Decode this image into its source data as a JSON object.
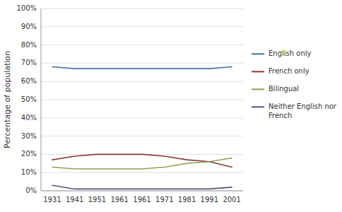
{
  "chart_data": {
    "type": "line",
    "y_label": "Percentage of population",
    "categories": [
      "1931",
      "1941",
      "1951",
      "1961",
      "1961",
      "1971",
      "1981",
      "1991",
      "2001"
    ],
    "series": [
      {
        "name": "English only",
        "color": "#4472A4",
        "values": [
          68,
          67,
          67,
          67,
          67,
          67,
          67,
          67,
          68
        ]
      },
      {
        "name": "French only",
        "color": "#8B3A3A",
        "values": [
          17,
          19,
          20,
          20,
          20,
          19,
          17,
          16,
          13
        ]
      },
      {
        "name": "Bilingual",
        "color": "#8DA050",
        "values": [
          13,
          12,
          12,
          12,
          12,
          13,
          15,
          16,
          18
        ]
      },
      {
        "name": "Neither English nor\nFrench",
        "color": "#5A5080",
        "values": [
          3,
          1,
          1,
          1,
          1,
          1,
          1,
          1,
          2
        ]
      }
    ],
    "ylim": [
      0,
      100
    ],
    "yticks": [
      {
        "value": 0,
        "label": "0%"
      },
      {
        "value": 10,
        "label": "10%"
      },
      {
        "value": 20,
        "label": "20%"
      },
      {
        "value": 30,
        "label": "30%"
      },
      {
        "value": 40,
        "label": "40%"
      },
      {
        "value": 50,
        "label": "50%"
      },
      {
        "value": 60,
        "label": "60%"
      },
      {
        "value": 70,
        "label": "70%"
      },
      {
        "value": 80,
        "label": "80%"
      },
      {
        "value": 90,
        "label": "90%"
      },
      {
        "value": 100,
        "label": "100%"
      }
    ],
    "grid": true,
    "legend": "right"
  }
}
